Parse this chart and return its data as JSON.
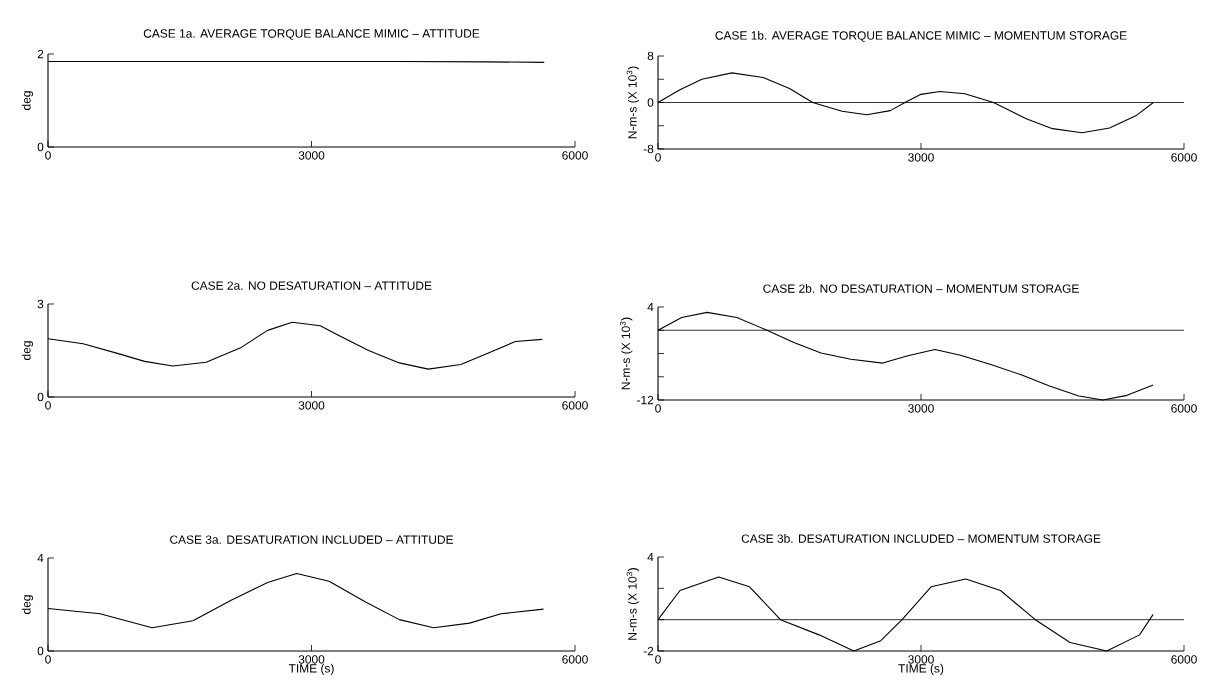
{
  "chart_data": [
    {
      "type": "line",
      "title": "CASE 1a.  AVERAGE TORQUE BALANCE MIMIC – ATTITUDE",
      "ylabel": "deg",
      "xlim": [
        0,
        6000
      ],
      "xticks": [
        0,
        3000,
        6000
      ],
      "ylim": [
        0,
        2
      ],
      "yticks": [
        0,
        2
      ],
      "x": [
        0,
        1000,
        2000,
        3000,
        4000,
        5000,
        5650
      ],
      "series": [
        {
          "color": "#000000",
          "values": [
            1.84,
            1.84,
            1.84,
            1.84,
            1.84,
            1.83,
            1.82
          ]
        }
      ]
    },
    {
      "type": "line",
      "title": "CASE 1b.  AVERAGE TORQUE BALANCE MIMIC – MOMENTUM STORAGE",
      "ylabel": "N-m-s (X 10$^{3}$)",
      "xlim": [
        0,
        6000
      ],
      "xticks": [
        0,
        3000,
        6000
      ],
      "ylim": [
        -8,
        8
      ],
      "yticks": [
        8,
        {
          "value": 4,
          "label": null
        },
        0,
        {
          "value": -4,
          "label": null
        },
        -8
      ],
      "ref_lines": [
        {
          "axis": "y",
          "value": 0,
          "color": "#000000"
        }
      ],
      "x": [
        0,
        250,
        500,
        843,
        1200,
        1500,
        1764,
        2100,
        2380,
        2650,
        2817,
        3000,
        3213,
        3500,
        3827,
        4200,
        4500,
        4836,
        5150,
        5450,
        5650
      ],
      "series": [
        {
          "color": "#000000",
          "values": [
            0,
            2.2,
            4.0,
            5.1,
            4.3,
            2.4,
            0,
            -1.5,
            -2.1,
            -1.4,
            0,
            1.4,
            1.9,
            1.5,
            0,
            -2.8,
            -4.5,
            -5.2,
            -4.4,
            -2.3,
            0
          ]
        }
      ]
    },
    {
      "type": "line",
      "title": "CASE 2a.  NO DESATURATION – ATTITUDE",
      "ylabel": "deg",
      "xlim": [
        0,
        6000
      ],
      "xticks": [
        0,
        3000,
        6000
      ],
      "ylim": [
        0,
        3
      ],
      "yticks": [
        0,
        3
      ],
      "x": [
        0,
        400,
        800,
        1100,
        1420,
        1800,
        2200,
        2500,
        2780,
        3100,
        3300,
        3650,
        4000,
        4330,
        4700,
        5000,
        5320,
        5627
      ],
      "series": [
        {
          "color": "#000000",
          "values": [
            1.88,
            1.72,
            1.4,
            1.15,
            1.0,
            1.12,
            1.6,
            2.15,
            2.41,
            2.3,
            2.0,
            1.5,
            1.1,
            0.9,
            1.05,
            1.4,
            1.79,
            1.86
          ]
        }
      ]
    },
    {
      "type": "line",
      "title": "CASE 2b.  NO DESATURATION – MOMENTUM STORAGE",
      "ylabel": "N-m-s (X 10$^{3}$)",
      "xlim": [
        0,
        6000
      ],
      "xticks": [
        0,
        3000,
        6000
      ],
      "ylim": [
        -12,
        4
      ],
      "yticks": [
        4,
        {
          "value": 0,
          "label": null
        },
        {
          "value": -4,
          "label": null
        },
        {
          "value": -8,
          "label": null
        },
        -12
      ],
      "ref_lines": [
        {
          "axis": "y",
          "value": 0,
          "color": "#000000"
        }
      ],
      "x": [
        0,
        270,
        560,
        900,
        1242,
        1550,
        1859,
        2200,
        2564,
        2850,
        3159,
        3450,
        3797,
        4150,
        4458,
        4800,
        5075,
        5350,
        5648
      ],
      "series": [
        {
          "color": "#000000",
          "values": [
            0,
            2.2,
            3.07,
            2.2,
            0,
            -2.1,
            -3.9,
            -5.0,
            -5.65,
            -4.4,
            -3.3,
            -4.3,
            -5.9,
            -7.7,
            -9.55,
            -11.3,
            -12,
            -11.2,
            -9.4
          ]
        }
      ]
    },
    {
      "type": "line",
      "title": "CASE 3a.  DESATURATION INCLUDED – ATTITUDE",
      "xlabel": "TIME (s)",
      "ylabel": "deg",
      "xlim": [
        0,
        6000
      ],
      "xticks": [
        0,
        3000,
        6000
      ],
      "ylim": [
        0,
        4
      ],
      "yticks": [
        0,
        4
      ],
      "x": [
        0,
        593,
        1185,
        1650,
        2085,
        2500,
        2831,
        3200,
        3621,
        4000,
        4390,
        4800,
        5158,
        5641
      ],
      "series": [
        {
          "color": "#000000",
          "values": [
            1.83,
            1.6,
            1.0,
            1.3,
            2.18,
            2.95,
            3.33,
            3.0,
            2.1,
            1.35,
            1.0,
            1.2,
            1.6,
            1.8
          ]
        }
      ]
    },
    {
      "type": "line",
      "title": "CASE 3b.  DESATURATION INCLUDED – MOMENTUM STORAGE",
      "xlabel": "TIME (s)",
      "ylabel": "N-m-s (X 10$^{3}$)",
      "xlim": [
        0,
        6000
      ],
      "xticks": [
        0,
        3000,
        6000
      ],
      "ylim": [
        -2,
        4
      ],
      "yticks": [
        4,
        {
          "value": 2,
          "label": null
        },
        {
          "value": 0,
          "label": null
        },
        -2
      ],
      "ref_lines": [
        {
          "axis": "y",
          "value": 0,
          "color": "#000000"
        }
      ],
      "x": [
        0,
        251,
        692,
        1044,
        1397,
        1837,
        2233,
        2542,
        2784,
        3115,
        3511,
        3907,
        4304,
        4700,
        5119,
        5493,
        5648
      ],
      "series": [
        {
          "color": "#000000",
          "values": [
            0,
            1.86,
            2.72,
            2.1,
            0,
            -0.97,
            -2.0,
            -1.34,
            0,
            2.1,
            2.6,
            1.86,
            0,
            -1.46,
            -2.0,
            -0.97,
            0.34
          ]
        }
      ]
    }
  ]
}
